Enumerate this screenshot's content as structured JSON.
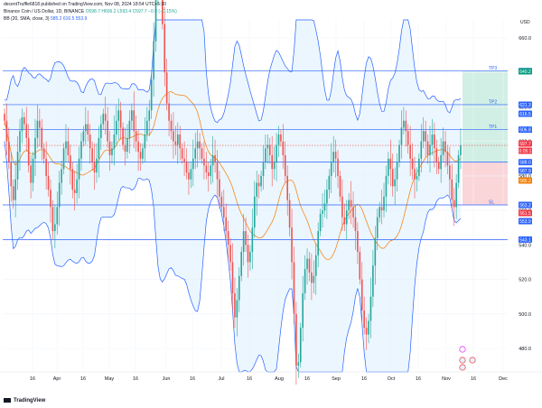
{
  "header": {
    "publisher_line": "decentTruffle6818 published on TradingView.com, Nov 08, 2024 18:54 UTC+5:30",
    "symbol": "Binance Coin / US Dollar, 1D, BINANCE",
    "ohlc": "O598.7  H606.2  L593.4  C597.7  −0.9 (−0.15%)",
    "indicator_name": "BB (20, SMA, close, 3)",
    "indicator_values": "585.2  616.5  553.9"
  },
  "currency": "USD",
  "footer": {
    "brand": "TradingView"
  },
  "colors": {
    "up": "#26a69a",
    "down": "#ef5350",
    "bb_band": "#2962ff",
    "bb_fill": "#e3f2fd",
    "basis": "#f57c00",
    "level_line": "#2962ff",
    "profit_zone": "#d1efe4",
    "loss_zone": "#fbd6d9"
  },
  "chart_data": {
    "type": "candlestick",
    "symbol": "BNBUSD",
    "interval": "1D",
    "y_ticks": [
      660,
      640,
      620,
      600,
      580,
      560,
      540,
      520,
      500,
      480
    ],
    "x_ticks": [
      "16",
      "Apr",
      "16",
      "May",
      "16",
      "Jun",
      "16",
      "Jul",
      "16",
      "Aug",
      "16",
      "Sep",
      "16",
      "Oct",
      "16",
      "Nov",
      "16",
      "Dec"
    ],
    "horizontal_levels": [
      {
        "label": "TP3",
        "price": 640.8,
        "badge": "640.8"
      },
      {
        "label": "TP2",
        "price": 621.3,
        "badge": "621.3"
      },
      {
        "label": "TP1",
        "price": 606.8,
        "badge": "606.8"
      },
      {
        "label": "",
        "price": 588.0,
        "badge": "588.0"
      },
      {
        "label": "SL",
        "price": 563.2,
        "badge": "563.2"
      },
      {
        "label": "",
        "price": 543.1,
        "badge": "543.1"
      }
    ],
    "axis_badges": [
      {
        "text": "640.2",
        "kind": "green"
      },
      {
        "text": "616.5",
        "kind": "blue"
      },
      {
        "text": "597.7",
        "kind": "red"
      },
      {
        "text": "10:05:13",
        "kind": "red_small"
      },
      {
        "text": "587.9",
        "kind": "blue"
      },
      {
        "text": "585.2",
        "kind": "orange"
      },
      {
        "text": "561.5",
        "kind": "red"
      },
      {
        "text": "553.9",
        "kind": "blue"
      }
    ],
    "position": {
      "entry": 587.9,
      "take_profit": 640.8,
      "stop_loss": 563.2
    },
    "last_price": 597.7,
    "bollinger": {
      "basis": 585.2,
      "upper": 616.5,
      "lower": 553.9
    },
    "closes": [
      612,
      600,
      588,
      574,
      566,
      578,
      594,
      606,
      614,
      610,
      602,
      586,
      576,
      590,
      602,
      612,
      608,
      596,
      590,
      580,
      572,
      562,
      548,
      552,
      562,
      576,
      584,
      596,
      600,
      592,
      584,
      572,
      570,
      578,
      590,
      600,
      606,
      610,
      604,
      596,
      588,
      582,
      590,
      602,
      610,
      616,
      612,
      600,
      592,
      596,
      604,
      612,
      618,
      608,
      598,
      594,
      602,
      612,
      618,
      606,
      600,
      594,
      590,
      596,
      604,
      612,
      618,
      636,
      658,
      690,
      704,
      690,
      668,
      640,
      622,
      612,
      606,
      600,
      598,
      604,
      596,
      590,
      588,
      582,
      578,
      584,
      590,
      596,
      600,
      596,
      590,
      586,
      582,
      580,
      586,
      592,
      588,
      578,
      568,
      562,
      556,
      548,
      540,
      530,
      512,
      498,
      508,
      522,
      536,
      548,
      540,
      530,
      536,
      550,
      568,
      576,
      574,
      580,
      588,
      596,
      598,
      592,
      584,
      588,
      598,
      604,
      600,
      592,
      580,
      566,
      550,
      530,
      500,
      470,
      472,
      492,
      512,
      526,
      532,
      524,
      518,
      522,
      534,
      548,
      558,
      560,
      564,
      572,
      580,
      588,
      594,
      590,
      580,
      568,
      556,
      552,
      560,
      566,
      562,
      556,
      548,
      536,
      520,
      502,
      492,
      488,
      496,
      510,
      528,
      544,
      556,
      562,
      560,
      568,
      580,
      590,
      584,
      574,
      578,
      588,
      598,
      608,
      612,
      606,
      598,
      590,
      584,
      578,
      580,
      590,
      600,
      606,
      600,
      592,
      598,
      604,
      596,
      588,
      584,
      592,
      600,
      594,
      586,
      578,
      566,
      562,
      576,
      592,
      597.7
    ]
  }
}
